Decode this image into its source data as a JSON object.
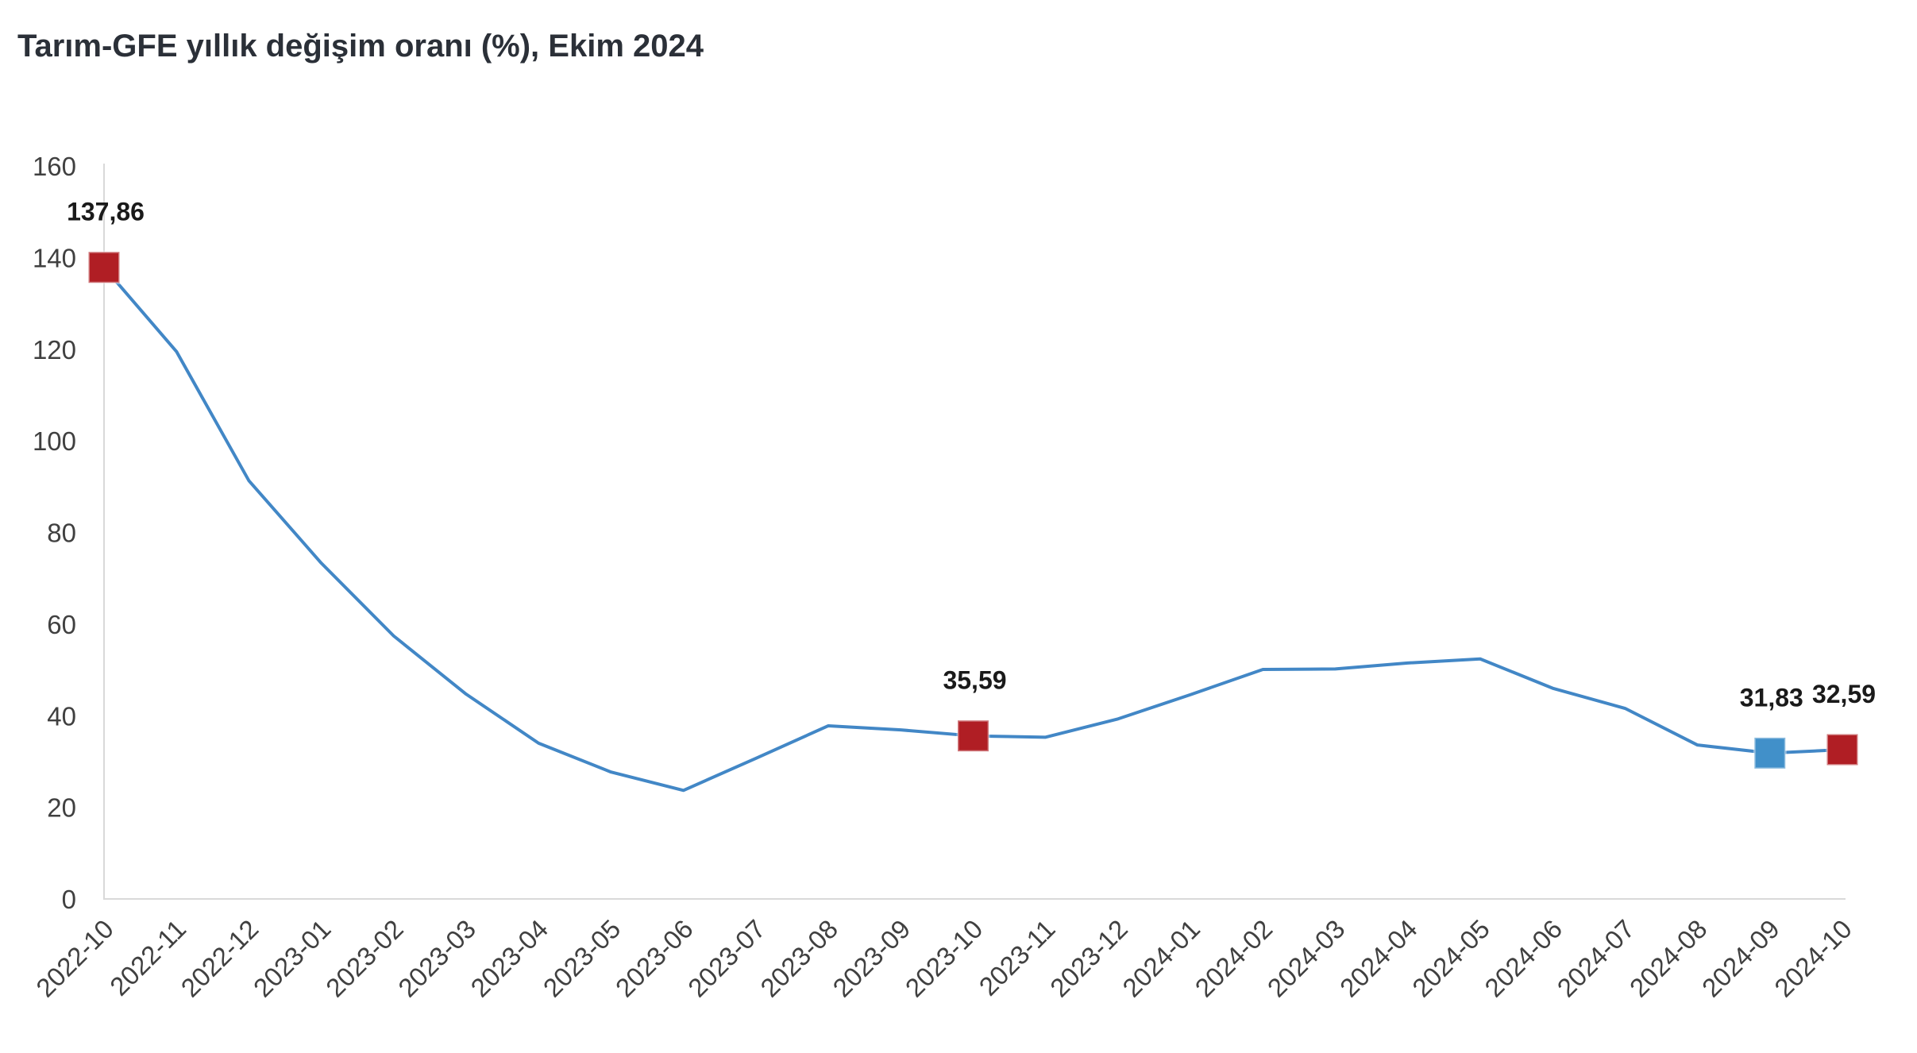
{
  "chart_data": {
    "type": "line",
    "title": "Tarım-GFE yıllık değişim oranı (%), Ekim 2024",
    "categories": [
      "2022-10",
      "2022-11",
      "2022-12",
      "2023-01",
      "2023-02",
      "2023-03",
      "2023-04",
      "2023-05",
      "2023-06",
      "2023-07",
      "2023-08",
      "2023-09",
      "2023-10",
      "2023-11",
      "2023-12",
      "2024-01",
      "2024-02",
      "2024-03",
      "2024-04",
      "2024-05",
      "2024-06",
      "2024-07",
      "2024-08",
      "2024-09",
      "2024-10"
    ],
    "values": [
      137.86,
      119.5,
      91.3,
      73.3,
      57.4,
      44.7,
      34.0,
      27.7,
      23.7,
      30.7,
      37.8,
      36.9,
      35.59,
      35.3,
      39.3,
      44.6,
      50.1,
      50.2,
      51.5,
      52.4,
      46.0,
      41.6,
      33.6,
      31.83,
      32.59
    ],
    "yticks": [
      0,
      20,
      40,
      60,
      80,
      100,
      120,
      140,
      160
    ],
    "ylim": [
      0,
      160
    ],
    "xlabel": "",
    "ylabel": "",
    "grid": false,
    "legend": "none",
    "x_label_rotation": -45,
    "decimal_separator": ",",
    "labeled_points": [
      {
        "category": "2022-10",
        "value": 137.86,
        "label": "137,86",
        "marker": "red"
      },
      {
        "category": "2023-10",
        "value": 35.59,
        "label": "35,59",
        "marker": "red"
      },
      {
        "category": "2024-09",
        "value": 31.83,
        "label": "31,83",
        "marker": "blue"
      },
      {
        "category": "2024-10",
        "value": 32.59,
        "label": "32,59",
        "marker": "red"
      }
    ],
    "colors": {
      "line": "#4287C6",
      "marker_red": "#B01E24",
      "marker_blue": "#4190C9",
      "axis": "#D9D9D9",
      "tick_label": "#404040",
      "data_label": "#1A1A1A",
      "title": "#2B3038"
    }
  }
}
